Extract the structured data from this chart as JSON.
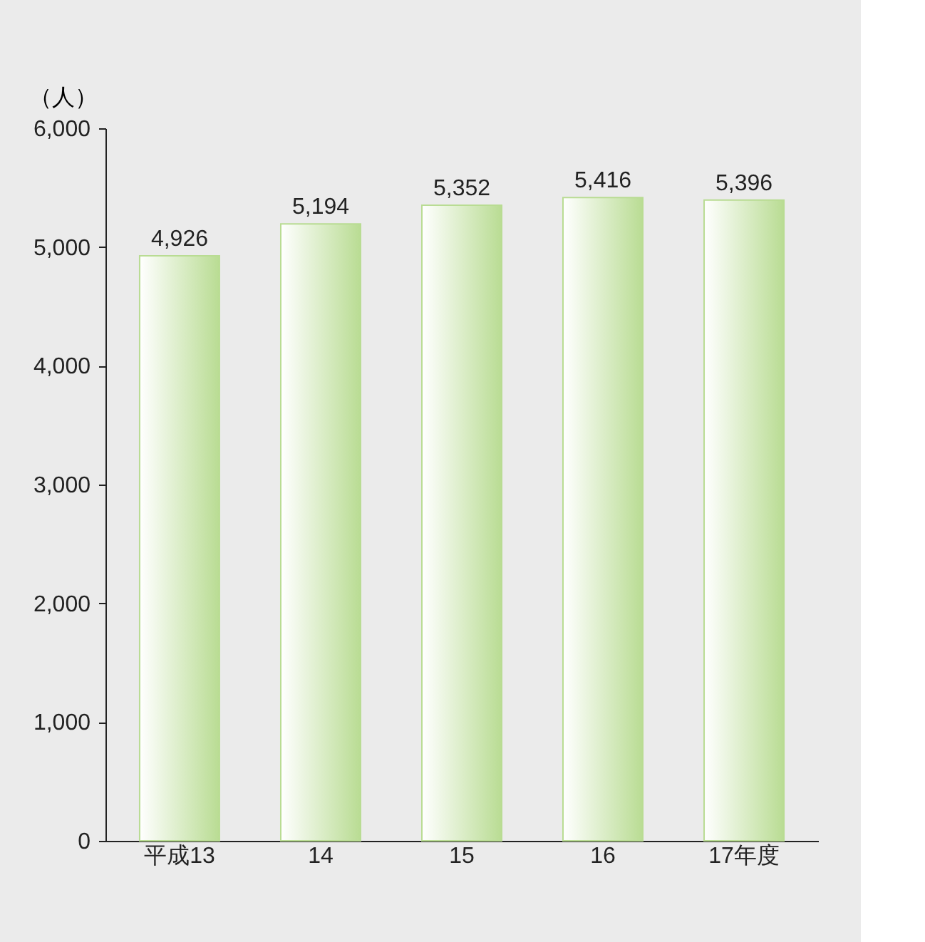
{
  "chart_data": {
    "type": "bar",
    "ylabel": "（人）",
    "categories": [
      "平成13",
      "14",
      "15",
      "16",
      "17年度"
    ],
    "values": [
      4926,
      5194,
      5352,
      5416,
      5396
    ],
    "value_labels": [
      "4,926",
      "5,194",
      "5,352",
      "5,416",
      "5,396"
    ],
    "color": "#b9dc93",
    "ylim": [
      0,
      6000
    ],
    "yticks": [
      0,
      {
        "value": 1000,
        "label": "1,000"
      },
      {
        "value": 2000,
        "label": "2,000"
      },
      {
        "value": 3000,
        "label": "3,000"
      },
      {
        "value": 4000,
        "label": "4,000"
      },
      {
        "value": 5000,
        "label": "5,000"
      },
      {
        "value": 6000,
        "label": "6,000"
      }
    ],
    "grid": false
  }
}
